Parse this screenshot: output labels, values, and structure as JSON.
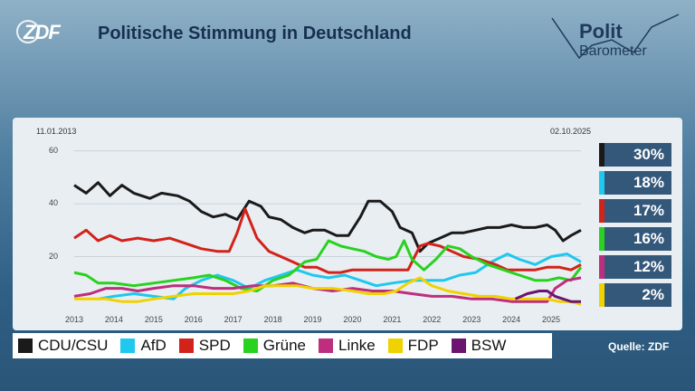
{
  "header": {
    "logo_text": "ZDF",
    "title": "Politische Stimmung in Deutschland",
    "brand_line1": "Polit",
    "brand_line2": "Barometer"
  },
  "source": "Quelle: ZDF",
  "chart_data": {
    "type": "line",
    "title": "Politische Stimmung in Deutschland",
    "date_start": "11.01.2013",
    "date_end": "02.10.2025",
    "xlim": [
      2013.0,
      2025.75
    ],
    "ylim": [
      0,
      65
    ],
    "yticks": [
      20,
      40,
      60
    ],
    "xticks": [
      "2013",
      "2014",
      "2015",
      "2016",
      "2017",
      "2018",
      "2019",
      "2020",
      "2021",
      "2022",
      "2023",
      "2024",
      "2025"
    ],
    "legend_position": "bottom",
    "series": [
      {
        "name": "CDU/CSU",
        "color": "#1a1a1a",
        "current": "30%",
        "points": [
          [
            2013.0,
            47
          ],
          [
            2013.3,
            44
          ],
          [
            2013.6,
            48
          ],
          [
            2013.9,
            43
          ],
          [
            2014.2,
            47
          ],
          [
            2014.5,
            44
          ],
          [
            2014.9,
            42
          ],
          [
            2015.2,
            44
          ],
          [
            2015.6,
            43
          ],
          [
            2015.9,
            41
          ],
          [
            2016.2,
            37
          ],
          [
            2016.5,
            35
          ],
          [
            2016.8,
            36
          ],
          [
            2017.1,
            34
          ],
          [
            2017.4,
            41
          ],
          [
            2017.7,
            39
          ],
          [
            2017.9,
            35
          ],
          [
            2018.2,
            34
          ],
          [
            2018.5,
            31
          ],
          [
            2018.8,
            29
          ],
          [
            2019.0,
            30
          ],
          [
            2019.3,
            30
          ],
          [
            2019.6,
            28
          ],
          [
            2019.9,
            28
          ],
          [
            2020.2,
            35
          ],
          [
            2020.4,
            41
          ],
          [
            2020.7,
            41
          ],
          [
            2021.0,
            37
          ],
          [
            2021.2,
            31
          ],
          [
            2021.5,
            29
          ],
          [
            2021.7,
            22
          ],
          [
            2021.9,
            25
          ],
          [
            2022.2,
            27
          ],
          [
            2022.5,
            29
          ],
          [
            2022.8,
            29
          ],
          [
            2023.1,
            30
          ],
          [
            2023.4,
            31
          ],
          [
            2023.7,
            31
          ],
          [
            2024.0,
            32
          ],
          [
            2024.3,
            31
          ],
          [
            2024.6,
            31
          ],
          [
            2024.9,
            32
          ],
          [
            2025.1,
            30
          ],
          [
            2025.3,
            26
          ],
          [
            2025.5,
            28
          ],
          [
            2025.75,
            30
          ]
        ]
      },
      {
        "name": "AfD",
        "color": "#1ec8ee",
        "current": "18%",
        "points": [
          [
            2013.6,
            4
          ],
          [
            2014.0,
            5
          ],
          [
            2014.5,
            6
          ],
          [
            2015.0,
            5
          ],
          [
            2015.5,
            4
          ],
          [
            2015.8,
            8
          ],
          [
            2016.2,
            11
          ],
          [
            2016.6,
            13
          ],
          [
            2017.0,
            11
          ],
          [
            2017.4,
            8
          ],
          [
            2017.8,
            11
          ],
          [
            2018.2,
            13
          ],
          [
            2018.6,
            15
          ],
          [
            2019.0,
            13
          ],
          [
            2019.4,
            12
          ],
          [
            2019.8,
            13
          ],
          [
            2020.2,
            11
          ],
          [
            2020.6,
            9
          ],
          [
            2021.0,
            10
          ],
          [
            2021.5,
            11
          ],
          [
            2021.9,
            11
          ],
          [
            2022.3,
            11
          ],
          [
            2022.7,
            13
          ],
          [
            2023.1,
            14
          ],
          [
            2023.5,
            18
          ],
          [
            2023.9,
            21
          ],
          [
            2024.2,
            19
          ],
          [
            2024.6,
            17
          ],
          [
            2025.0,
            20
          ],
          [
            2025.4,
            21
          ],
          [
            2025.75,
            18
          ]
        ]
      },
      {
        "name": "SPD",
        "color": "#d2231a",
        "current": "17%",
        "points": [
          [
            2013.0,
            27
          ],
          [
            2013.3,
            30
          ],
          [
            2013.6,
            26
          ],
          [
            2013.9,
            28
          ],
          [
            2014.2,
            26
          ],
          [
            2014.6,
            27
          ],
          [
            2015.0,
            26
          ],
          [
            2015.4,
            27
          ],
          [
            2015.8,
            25
          ],
          [
            2016.2,
            23
          ],
          [
            2016.6,
            22
          ],
          [
            2016.9,
            22
          ],
          [
            2017.1,
            29
          ],
          [
            2017.3,
            38
          ],
          [
            2017.6,
            27
          ],
          [
            2017.9,
            22
          ],
          [
            2018.2,
            20
          ],
          [
            2018.5,
            18
          ],
          [
            2018.8,
            16
          ],
          [
            2019.1,
            16
          ],
          [
            2019.4,
            14
          ],
          [
            2019.7,
            14
          ],
          [
            2020.0,
            15
          ],
          [
            2020.4,
            15
          ],
          [
            2020.8,
            15
          ],
          [
            2021.1,
            15
          ],
          [
            2021.4,
            15
          ],
          [
            2021.7,
            24
          ],
          [
            2021.9,
            25
          ],
          [
            2022.2,
            24
          ],
          [
            2022.5,
            22
          ],
          [
            2022.8,
            20
          ],
          [
            2023.2,
            19
          ],
          [
            2023.6,
            17
          ],
          [
            2023.9,
            15
          ],
          [
            2024.2,
            15
          ],
          [
            2024.6,
            15
          ],
          [
            2024.9,
            16
          ],
          [
            2025.2,
            16
          ],
          [
            2025.5,
            15
          ],
          [
            2025.75,
            17
          ]
        ]
      },
      {
        "name": "Grüne",
        "color": "#28d21e",
        "current": "16%",
        "points": [
          [
            2013.0,
            14
          ],
          [
            2013.3,
            13
          ],
          [
            2013.6,
            10
          ],
          [
            2014.0,
            10
          ],
          [
            2014.5,
            9
          ],
          [
            2015.0,
            10
          ],
          [
            2015.5,
            11
          ],
          [
            2016.0,
            12
          ],
          [
            2016.4,
            13
          ],
          [
            2016.8,
            11
          ],
          [
            2017.2,
            8
          ],
          [
            2017.6,
            7
          ],
          [
            2018.0,
            11
          ],
          [
            2018.4,
            13
          ],
          [
            2018.8,
            18
          ],
          [
            2019.1,
            19
          ],
          [
            2019.4,
            26
          ],
          [
            2019.7,
            24
          ],
          [
            2020.0,
            23
          ],
          [
            2020.3,
            22
          ],
          [
            2020.6,
            20
          ],
          [
            2020.9,
            19
          ],
          [
            2021.1,
            20
          ],
          [
            2021.3,
            26
          ],
          [
            2021.5,
            19
          ],
          [
            2021.8,
            15
          ],
          [
            2022.1,
            19
          ],
          [
            2022.4,
            24
          ],
          [
            2022.7,
            23
          ],
          [
            2023.0,
            20
          ],
          [
            2023.4,
            17
          ],
          [
            2023.8,
            15
          ],
          [
            2024.2,
            13
          ],
          [
            2024.6,
            11
          ],
          [
            2024.9,
            11
          ],
          [
            2025.2,
            12
          ],
          [
            2025.5,
            11
          ],
          [
            2025.75,
            16
          ]
        ]
      },
      {
        "name": "Linke",
        "color": "#be2e7e",
        "current": "12%",
        "points": [
          [
            2013.0,
            5
          ],
          [
            2013.4,
            6
          ],
          [
            2013.8,
            8
          ],
          [
            2014.2,
            8
          ],
          [
            2014.6,
            7
          ],
          [
            2015.0,
            8
          ],
          [
            2015.5,
            9
          ],
          [
            2016.0,
            9
          ],
          [
            2016.5,
            8
          ],
          [
            2017.0,
            8
          ],
          [
            2017.5,
            9
          ],
          [
            2018.0,
            9
          ],
          [
            2018.5,
            10
          ],
          [
            2019.0,
            8
          ],
          [
            2019.5,
            7
          ],
          [
            2020.0,
            8
          ],
          [
            2020.5,
            7
          ],
          [
            2021.0,
            7
          ],
          [
            2021.5,
            6
          ],
          [
            2022.0,
            5
          ],
          [
            2022.5,
            5
          ],
          [
            2023.0,
            4
          ],
          [
            2023.5,
            4
          ],
          [
            2024.0,
            3
          ],
          [
            2024.5,
            3
          ],
          [
            2024.9,
            3
          ],
          [
            2025.1,
            8
          ],
          [
            2025.4,
            11
          ],
          [
            2025.75,
            12
          ]
        ]
      },
      {
        "name": "FDP",
        "color": "#f0d200",
        "current": "2%",
        "points": [
          [
            2013.0,
            4
          ],
          [
            2013.4,
            4
          ],
          [
            2013.8,
            4
          ],
          [
            2014.2,
            3
          ],
          [
            2014.6,
            3
          ],
          [
            2015.0,
            4
          ],
          [
            2015.5,
            5
          ],
          [
            2016.0,
            6
          ],
          [
            2016.5,
            6
          ],
          [
            2017.0,
            6
          ],
          [
            2017.4,
            7
          ],
          [
            2017.8,
            9
          ],
          [
            2018.2,
            9
          ],
          [
            2018.6,
            9
          ],
          [
            2019.0,
            8
          ],
          [
            2019.5,
            8
          ],
          [
            2020.0,
            7
          ],
          [
            2020.4,
            6
          ],
          [
            2020.8,
            6
          ],
          [
            2021.1,
            7
          ],
          [
            2021.4,
            10
          ],
          [
            2021.7,
            12
          ],
          [
            2022.0,
            9
          ],
          [
            2022.4,
            7
          ],
          [
            2022.8,
            6
          ],
          [
            2023.2,
            5
          ],
          [
            2023.6,
            5
          ],
          [
            2024.0,
            4
          ],
          [
            2024.5,
            4
          ],
          [
            2024.9,
            4
          ],
          [
            2025.2,
            3
          ],
          [
            2025.5,
            3
          ],
          [
            2025.75,
            2
          ]
        ]
      },
      {
        "name": "BSW",
        "color": "#6b1570",
        "current": "",
        "points": [
          [
            2024.1,
            4
          ],
          [
            2024.4,
            6
          ],
          [
            2024.7,
            7
          ],
          [
            2024.9,
            7
          ],
          [
            2025.1,
            5
          ],
          [
            2025.3,
            4
          ],
          [
            2025.5,
            3
          ],
          [
            2025.75,
            3
          ]
        ]
      }
    ]
  }
}
